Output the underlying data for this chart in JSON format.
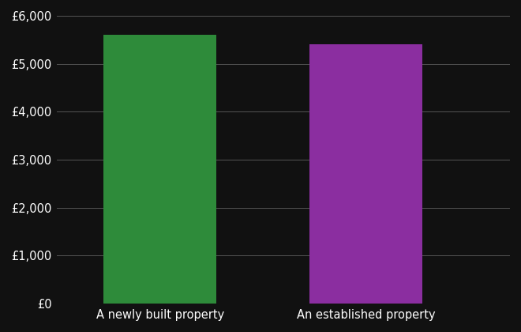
{
  "categories": [
    "A newly built property",
    "An established property"
  ],
  "values": [
    5600,
    5400
  ],
  "bar_colors": [
    "#2e8b3a",
    "#8b2ea0"
  ],
  "background_color": "#111111",
  "text_color": "#ffffff",
  "grid_color": "#555555",
  "ylim": [
    0,
    6000
  ],
  "yticks": [
    0,
    1000,
    2000,
    3000,
    4000,
    5000,
    6000
  ],
  "bar_width": 0.55,
  "tick_fontsize": 10.5,
  "label_fontsize": 10.5,
  "x_positions": [
    1,
    2
  ],
  "xlim": [
    0.5,
    2.7
  ]
}
